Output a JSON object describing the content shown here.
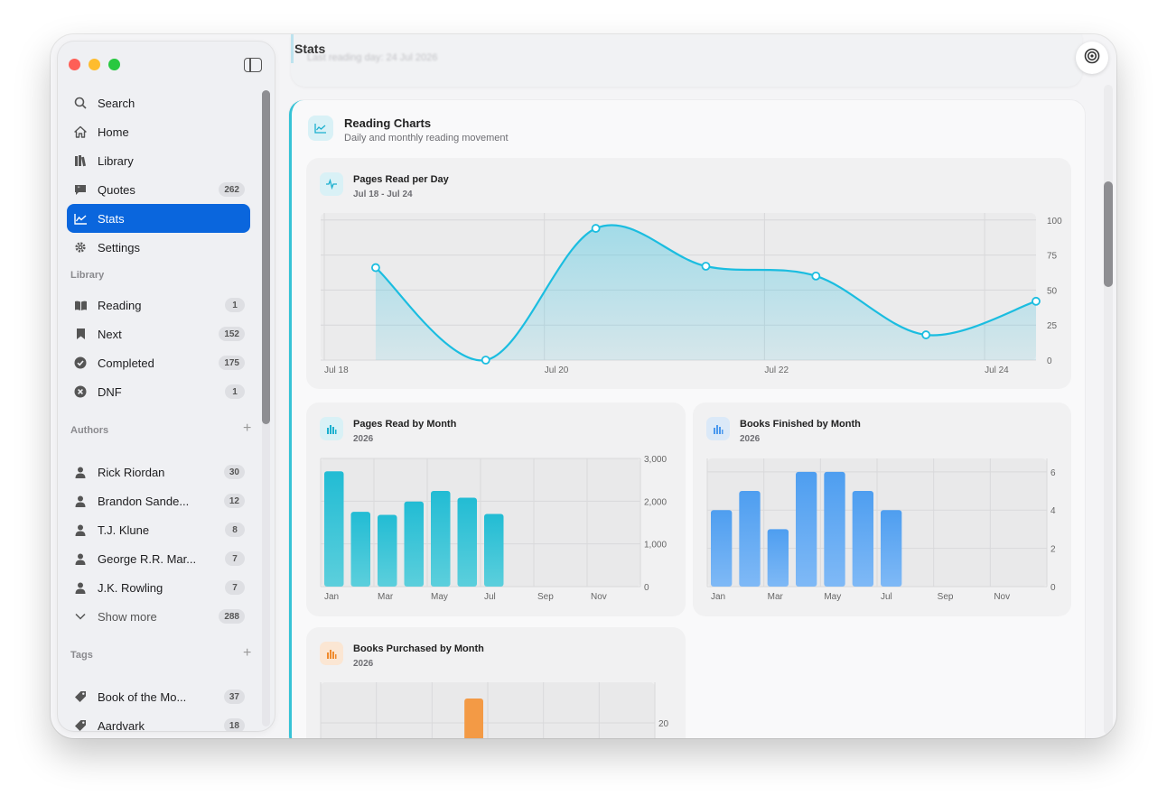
{
  "sidebar": {
    "nav": [
      {
        "label": "Search",
        "icon": "search-icon"
      },
      {
        "label": "Home",
        "icon": "home-icon"
      },
      {
        "label": "Library",
        "icon": "books-icon"
      },
      {
        "label": "Quotes",
        "icon": "quote-bubble-icon",
        "badge": "262"
      },
      {
        "label": "Stats",
        "icon": "chart-line-icon",
        "active": true
      },
      {
        "label": "Settings",
        "icon": "gear-icon"
      }
    ],
    "library_heading": "Library",
    "library": [
      {
        "label": "Reading",
        "icon": "open-book-icon",
        "badge": "1"
      },
      {
        "label": "Next",
        "icon": "bookmark-icon",
        "badge": "152"
      },
      {
        "label": "Completed",
        "icon": "checkmark-circle-icon",
        "badge": "175"
      },
      {
        "label": "DNF",
        "icon": "x-circle-icon",
        "badge": "1"
      }
    ],
    "authors_heading": "Authors",
    "authors": [
      {
        "label": "Rick Riordan",
        "badge": "30"
      },
      {
        "label": "Brandon Sande...",
        "badge": "12"
      },
      {
        "label": "T.J. Klune",
        "badge": "8"
      },
      {
        "label": "George R.R. Mar...",
        "badge": "7"
      },
      {
        "label": "J.K. Rowling",
        "badge": "7"
      }
    ],
    "show_more": {
      "label": "Show more",
      "badge": "288"
    },
    "tags_heading": "Tags",
    "tags": [
      {
        "label": "Book of the Mo...",
        "badge": "37"
      },
      {
        "label": "Aardvark",
        "badge": "18"
      }
    ]
  },
  "header": {
    "title": "Stats",
    "subtitle": "Last reading day: 24 Jul 2026"
  },
  "panel": {
    "title": "Reading Charts",
    "subtitle": "Daily and monthly reading movement"
  },
  "colors": {
    "accent": "#0a66dd",
    "teal": "#1bbde0",
    "bar_teal": "#2cc1d6",
    "bar_blue": "#5aa8f4",
    "bar_orange": "#f39a45"
  },
  "chart_data": [
    {
      "type": "area",
      "title": "Pages Read per Day",
      "subtitle": "Jul 18 - Jul 24",
      "x": [
        "Jul 18",
        "Jul 19",
        "Jul 20",
        "Jul 21",
        "Jul 22",
        "Jul 23",
        "Jul 24"
      ],
      "y": [
        66,
        0,
        94,
        67,
        60,
        18,
        42
      ],
      "x_ticks": [
        "Jul 18",
        "Jul 20",
        "Jul 22",
        "Jul 24"
      ],
      "y_ticks": [
        "0",
        "25",
        "50",
        "75",
        "100"
      ],
      "ylim": [
        0,
        105
      ]
    },
    {
      "type": "bar",
      "title": "Pages Read by Month",
      "subtitle": "2026",
      "categories": [
        "Jan",
        "Feb",
        "Mar",
        "Apr",
        "May",
        "Jun",
        "Jul",
        "Aug",
        "Sep",
        "Oct",
        "Nov",
        "Dec"
      ],
      "values": [
        2700,
        1750,
        1680,
        1990,
        2240,
        2080,
        1700,
        0,
        0,
        0,
        0,
        0
      ],
      "x_ticks": [
        "Jan",
        "Mar",
        "May",
        "Jul",
        "Sep",
        "Nov"
      ],
      "y_ticks": [
        "0",
        "1,000",
        "2,000",
        "3,000"
      ],
      "ylim": [
        0,
        3000
      ]
    },
    {
      "type": "bar",
      "title": "Books Finished by Month",
      "subtitle": "2026",
      "categories": [
        "Jan",
        "Feb",
        "Mar",
        "Apr",
        "May",
        "Jun",
        "Jul",
        "Aug",
        "Sep",
        "Oct",
        "Nov",
        "Dec"
      ],
      "values": [
        4,
        5,
        3,
        6,
        6,
        5,
        4,
        0,
        0,
        0,
        0,
        0
      ],
      "x_ticks": [
        "Jan",
        "Mar",
        "May",
        "Jul",
        "Sep",
        "Nov"
      ],
      "y_ticks": [
        "0",
        "2",
        "4",
        "6"
      ],
      "ylim": [
        0,
        6.7
      ]
    },
    {
      "type": "bar",
      "title": "Books Purchased by Month",
      "subtitle": "2026",
      "categories": [
        "Jan",
        "Feb",
        "Mar",
        "Apr",
        "May",
        "Jun",
        "Jul",
        "Aug",
        "Sep",
        "Oct",
        "Nov",
        "Dec"
      ],
      "values": [
        0,
        0,
        0,
        0,
        0,
        26,
        0,
        0,
        0,
        0,
        0,
        0
      ],
      "y_ticks": [
        "20"
      ]
    }
  ]
}
